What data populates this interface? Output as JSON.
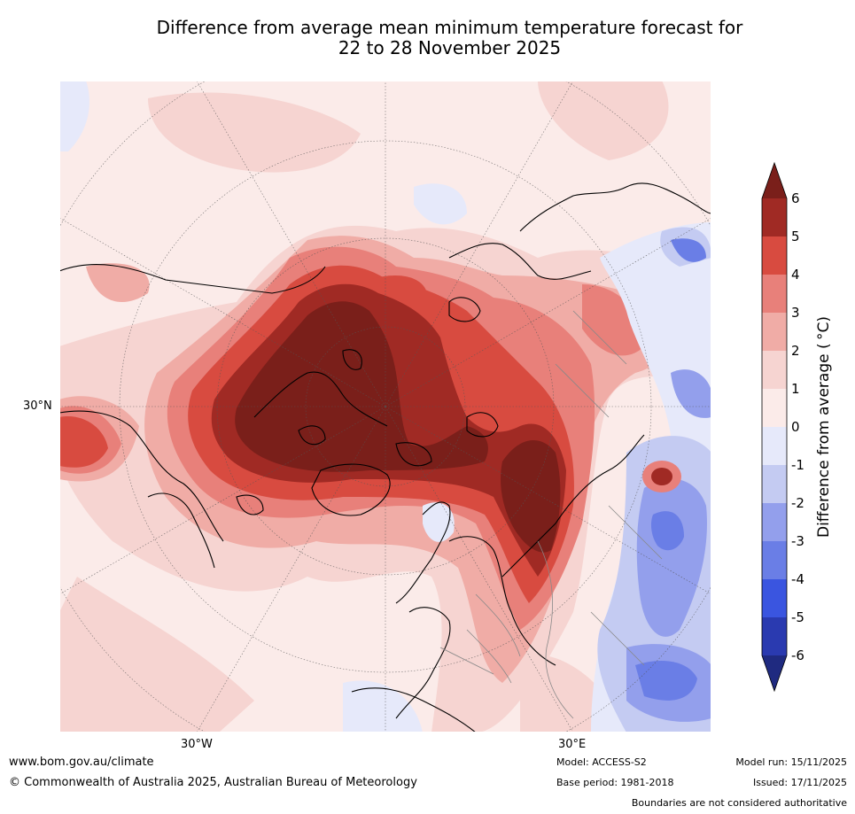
{
  "title_line1": "Difference from average mean minimum temperature forecast for",
  "title_line2": "22 to 28 November 2025",
  "map": {
    "lat_label": "30°N",
    "lon_labels": [
      "30°W",
      "30°E"
    ]
  },
  "colorbar": {
    "label": "Difference from average ( °C)",
    "ticks": [
      "6",
      "5",
      "4",
      "3",
      "2",
      "1",
      "0",
      "-1",
      "-2",
      "-3",
      "-4",
      "-5",
      "-6"
    ],
    "colors": {
      "above6": "#7a1f1a",
      "b5_6": "#a02a24",
      "b4_5": "#d84b40",
      "b3_4": "#e8807a",
      "b2_3": "#f0aca6",
      "b1_2": "#f6d4d1",
      "b0_1": "#fbebe9",
      "bm1_0": "#e6e9fa",
      "bm2_m1": "#c4cbf2",
      "bm3_m2": "#939fec",
      "bm4_m3": "#6a7ee6",
      "bm5_m4": "#3a55e0",
      "bm6_m5": "#2a3ab0",
      "below_m6": "#1f2a80"
    }
  },
  "footer": {
    "website": "www.bom.gov.au/climate",
    "copyright": "© Commonwealth of Australia 2025, Australian Bureau of Meteorology",
    "model": "Model: ACCESS-S2",
    "base_period": "Base period: 1981-2018",
    "model_run": "Model run: 15/11/2025",
    "issued": "Issued: 17/11/2025",
    "disclaimer": "Boundaries are not considered authoritative"
  }
}
